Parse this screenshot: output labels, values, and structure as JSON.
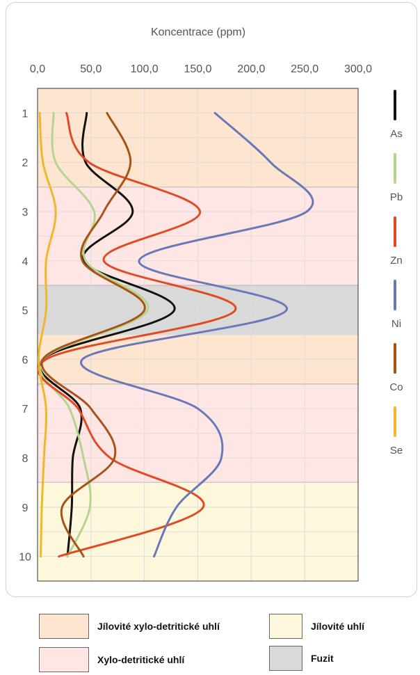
{
  "chart_data": {
    "type": "line",
    "orientation": "vertical-profile",
    "title": "Koncentrace (ppm)",
    "x_axis": {
      "label": "Koncentrace (ppm)",
      "position": "top",
      "range": [
        0,
        300
      ],
      "ticks": [
        0,
        50,
        100,
        150,
        200,
        250,
        300
      ],
      "tick_labels": [
        "0,0",
        "50,0",
        "100,0",
        "150,0",
        "200,0",
        "250,0",
        "300,0"
      ]
    },
    "y_axis": {
      "range": [
        0.5,
        10.5
      ],
      "inverted": true,
      "ticks": [
        1,
        2,
        3,
        4,
        5,
        6,
        7,
        8,
        9,
        10
      ],
      "tick_labels": [
        "1",
        "2",
        "3",
        "4",
        "5",
        "6",
        "7",
        "8",
        "9",
        "10"
      ]
    },
    "grid": true,
    "legend_position": "right",
    "series": [
      {
        "name": "As",
        "color": "#111111",
        "y": [
          1,
          2,
          3,
          4,
          5,
          6,
          7,
          8,
          9,
          10
        ],
        "values": [
          46,
          45,
          89,
          43,
          128,
          5,
          40,
          33,
          32,
          28
        ]
      },
      {
        "name": "Pb",
        "color": "#b5d58f",
        "y": [
          1,
          2,
          3,
          4,
          5,
          6,
          7,
          8,
          9,
          10
        ],
        "values": [
          15,
          17,
          53,
          45,
          103,
          5,
          30,
          43,
          49,
          28
        ]
      },
      {
        "name": "Zn",
        "color": "#e04a25",
        "y": [
          1,
          2,
          3,
          4,
          5,
          6,
          7,
          8,
          9,
          10
        ],
        "values": [
          27,
          48,
          152,
          62,
          185,
          8,
          38,
          68,
          155,
          20
        ]
      },
      {
        "name": "Ni",
        "color": "#6b78b8",
        "y": [
          1,
          2,
          3,
          4,
          5,
          6,
          7,
          8,
          9,
          10
        ],
        "values": [
          166,
          218,
          252,
          95,
          233,
          42,
          150,
          172,
          130,
          109
        ]
      },
      {
        "name": "Co",
        "color": "#a85218",
        "y": [
          1,
          2,
          3,
          4,
          5,
          6,
          7,
          8,
          9,
          10
        ],
        "values": [
          65,
          87,
          62,
          42,
          100,
          5,
          50,
          72,
          23,
          43
        ]
      },
      {
        "name": "Se",
        "color": "#f1b72a",
        "y": [
          1,
          2,
          3,
          4,
          5,
          6,
          7,
          8,
          9,
          10
        ],
        "values": [
          2,
          5,
          17,
          8,
          8,
          1,
          8,
          6,
          4,
          3
        ]
      }
    ],
    "background_bands": [
      {
        "from": 0.5,
        "to": 2.5,
        "type": "Jílovité xylo-detritické uhlí"
      },
      {
        "from": 2.5,
        "to": 4.5,
        "type": "Xylo-detritické uhlí"
      },
      {
        "from": 4.5,
        "to": 5.5,
        "type": "Fuzit"
      },
      {
        "from": 5.5,
        "to": 6.5,
        "type": "Jílovité xylo-detritické uhlí"
      },
      {
        "from": 6.5,
        "to": 8.5,
        "type": "Xylo-detritické uhlí"
      },
      {
        "from": 8.5,
        "to": 10.5,
        "type": "Jílovité uhlí"
      }
    ]
  },
  "colors": {
    "Jílovité xylo-detritické uhlí": "#fde5d0",
    "Xylo-detritické uhlí": "#fde6e4",
    "Jílovité uhlí": "#fdf7db",
    "Fuzit": "#d9d9d9"
  },
  "legend": {
    "items": [
      {
        "label": "Jílovité xylo-detritické uhlí",
        "color": "#fde5d0"
      },
      {
        "label": "Xylo-detritické uhlí",
        "color": "#fde6e4"
      },
      {
        "label": "Jílovité uhlí",
        "color": "#fdf7db"
      },
      {
        "label": "Fuzit",
        "color": "#d9d9d9"
      }
    ]
  }
}
